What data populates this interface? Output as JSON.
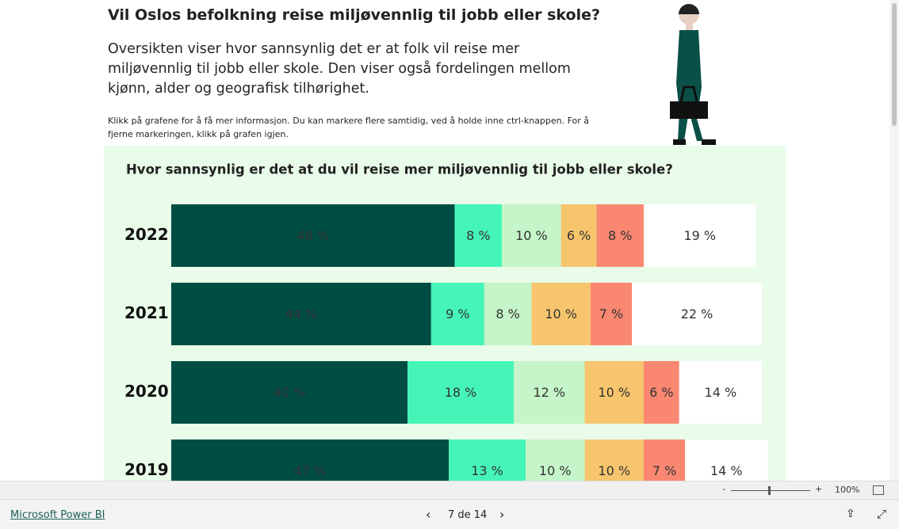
{
  "header": {
    "title": "Vil Oslos befolkning reise miljøvennlig til jobb eller skole?",
    "description": "Oversikten viser hvor sannsynlig det er at folk vil reise mer miljøvennlig til jobb eller skole. Den viser også fordelingen mellom kjønn, alder og geografisk tilhørighet.",
    "hint": "Klikk på grafene for å få mer informasjon. Du kan markere flere samtidig, ved å holde inne ctrl-knappen. For å fjerne markeringen, klikk på grafen igjen."
  },
  "chart_data": {
    "type": "stacked-bar-horizontal",
    "title": "Hvor sannsynlig er det at du vil reise mer miljøvennlig til jobb eller skole?",
    "categories": [
      "2022",
      "2021",
      "2020",
      "2019"
    ],
    "xlim": [
      0,
      100
    ],
    "series": [
      {
        "color": "#004d44",
        "values": [
          48,
          44,
          40,
          47
        ],
        "value_labels": [
          "48 %",
          "44 %",
          "40 %",
          "47 %"
        ]
      },
      {
        "color": "#45f5b8",
        "values": [
          8,
          9,
          18,
          13
        ],
        "value_labels": [
          "8 %",
          "9 %",
          "18 %",
          "13 %"
        ]
      },
      {
        "color": "#c5f5c8",
        "values": [
          10,
          8,
          12,
          10
        ],
        "value_labels": [
          "10 %",
          "8 %",
          "12 %",
          "10 %"
        ]
      },
      {
        "color": "#f7c56d",
        "values": [
          6,
          10,
          10,
          10
        ],
        "value_labels": [
          "6 %",
          "10 %",
          "10 %",
          "10 %"
        ]
      },
      {
        "color": "#fa8771",
        "values": [
          8,
          7,
          6,
          7
        ],
        "value_labels": [
          "8 %",
          "7 %",
          "6 %",
          "7 %"
        ]
      },
      {
        "color": "#ffffff",
        "values": [
          19,
          22,
          14,
          14
        ],
        "value_labels": [
          "19 %",
          "22 %",
          "14 %",
          "14 %"
        ]
      }
    ]
  },
  "zoom": {
    "minus": "-",
    "plus": "+",
    "level": "100%"
  },
  "footer": {
    "brand": "Microsoft Power BI",
    "page": "7 de 14"
  }
}
